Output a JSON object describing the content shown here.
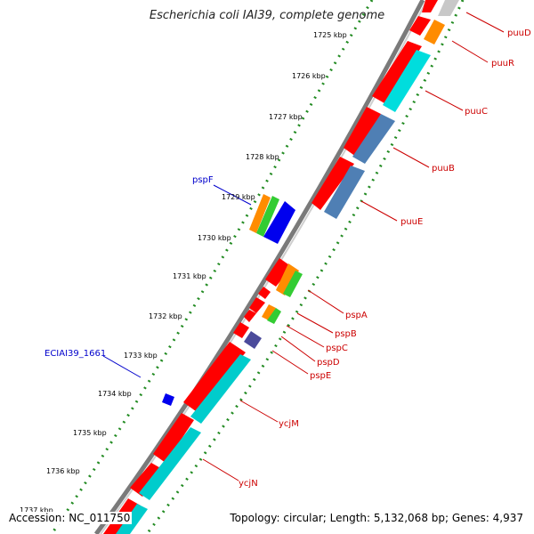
{
  "header": {
    "title": "Escherichia coli IAI39, complete genome"
  },
  "footer": {
    "accession": "Accession: NC_011750",
    "summary": "Topology: circular; Length: 5,132,068 bp; Genes: 4,937"
  },
  "colors": {
    "backbone": "#888888",
    "cds_forward": "#ff0000",
    "cds_blue": "#0000ff",
    "ticks": "#228b22",
    "orange": "#ff8c00",
    "green": "#33cc33",
    "cyan": "#00cccc",
    "steelblue": "#4682b4",
    "gray": "#c0c0c0",
    "purple": "#4b4b9b",
    "label_red": "#cc0000",
    "label_blue": "#0000cc"
  },
  "kbp_labels": [
    "1725 kbp",
    "1726 kbp",
    "1727 kbp",
    "1728 kbp",
    "1729 kbp",
    "1730 kbp",
    "1731 kbp",
    "1732 kbp",
    "1733 kbp",
    "1734 kbp",
    "1735 kbp",
    "1736 kbp",
    "1737 kbp"
  ],
  "gene_labels_right": [
    "puuD",
    "puuR",
    "puuC",
    "puuB",
    "puuE",
    "pspA",
    "pspB",
    "pspC",
    "pspD",
    "pspE",
    "ycjM",
    "ycjN"
  ],
  "gene_labels_left": [
    "pspF",
    "ECIAI39_1661"
  ]
}
